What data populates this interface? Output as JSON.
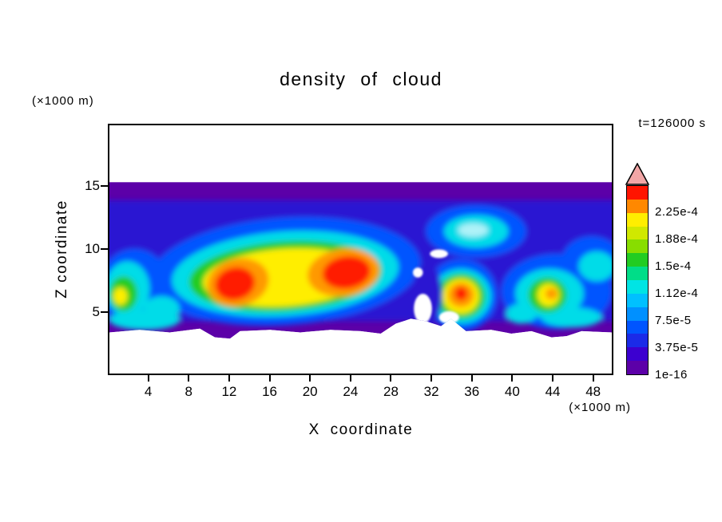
{
  "title": "density of cloud",
  "time_label": "t=126000 s",
  "axes": {
    "x_label": "X coordinate",
    "x_unit_label": "(×1000 m)",
    "z_label": "Z coordinate",
    "z_unit_label": "(×1000 m)",
    "x_ticks": [
      "4",
      "8",
      "12",
      "16",
      "20",
      "24",
      "28",
      "32",
      "36",
      "40",
      "44",
      "48"
    ],
    "z_ticks": [
      "5",
      "10",
      "15"
    ]
  },
  "colorbar": {
    "labels_top_to_bottom": [
      "2.25e-4",
      "1.88e-4",
      "1.5e-4",
      "1.12e-4",
      "7.5e-5",
      "3.75e-5",
      "1e-16"
    ],
    "segments_bottom_to_top": [
      "#5c00a8",
      "#3c00d0",
      "#1b2be8",
      "#0055ff",
      "#0090ff",
      "#00c0ff",
      "#00e4e4",
      "#00dd88",
      "#22cc22",
      "#88dd00",
      "#d0e800",
      "#ffee00",
      "#ff8800",
      "#ff1400"
    ],
    "overflow_arrow_color": "#f2a6a6"
  },
  "chart_data": {
    "type": "heatmap",
    "title": "density of cloud",
    "xlabel": "X coordinate (×1000 m)",
    "ylabel": "Z coordinate (×1000 m)",
    "time_label": "t=126000 s",
    "x_range": [
      0,
      50
    ],
    "z_range": [
      0,
      19.9
    ],
    "contour_levels": [
      1e-16,
      3.75e-05,
      7.5e-05,
      0.000112,
      0.00015,
      0.000188,
      0.000225
    ],
    "legend_position": "right",
    "grid": false,
    "band": {
      "z_top": 15.35,
      "bottom_profile": [
        [
          0,
          3.3
        ],
        [
          3,
          3.5
        ],
        [
          6,
          3.3
        ],
        [
          9,
          3.6
        ],
        [
          10.5,
          2.9
        ],
        [
          12,
          2.8
        ],
        [
          13,
          3.4
        ],
        [
          16,
          3.5
        ],
        [
          19,
          3.3
        ],
        [
          22,
          3.5
        ],
        [
          25,
          3.4
        ],
        [
          27,
          3.2
        ],
        [
          28.5,
          4.0
        ],
        [
          30,
          4.4
        ],
        [
          31.5,
          4.2
        ],
        [
          33,
          3.8
        ],
        [
          34,
          4.4
        ],
        [
          35.5,
          3.4
        ],
        [
          38,
          3.5
        ],
        [
          40,
          3.2
        ],
        [
          42,
          3.4
        ],
        [
          44,
          2.9
        ],
        [
          45.5,
          3.0
        ],
        [
          47,
          3.4
        ],
        [
          50,
          3.3
        ]
      ]
    },
    "palette": {
      "purple": "#5c00a8",
      "darkblue": "#2a18d2",
      "blue": "#0055ff",
      "skyblue": "#00a0ff",
      "cyan": "#00dce8",
      "green": "#22cc22",
      "yellow": "#ffee00",
      "orange": "#ff9900",
      "red": "#ff1e00",
      "lightcyan": "#aef2f8",
      "white": "#ffffff"
    },
    "features": [
      [
        "r",
        "darkblue",
        -2,
        52,
        4.2,
        13.9
      ],
      [
        "e",
        "blue",
        17.5,
        8.2,
        13.5,
        4.3,
        -4
      ],
      [
        "e",
        "blue",
        35,
        6.3,
        3.6,
        2.9,
        0
      ],
      [
        "e",
        "blue",
        36.5,
        11.4,
        5.0,
        2.1,
        0
      ],
      [
        "e",
        "blue",
        44.5,
        6.6,
        5.5,
        3.0,
        0
      ],
      [
        "e",
        "blue",
        2.5,
        7.0,
        3.5,
        3.0,
        0
      ],
      [
        "e",
        "blue",
        48,
        9.0,
        3.0,
        2.0,
        0
      ],
      [
        "e",
        "cyan",
        17.5,
        8.0,
        11.3,
        3.4,
        -4
      ],
      [
        "e",
        "cyan",
        35,
        6.2,
        3.0,
        2.2,
        0
      ],
      [
        "e",
        "cyan",
        36.5,
        11.4,
        3.2,
        1.3,
        0
      ],
      [
        "e",
        "cyan",
        43.8,
        6.4,
        3.4,
        2.0,
        0
      ],
      [
        "e",
        "cyan",
        1.8,
        6.8,
        2.2,
        2.2,
        0
      ],
      [
        "e",
        "cyan",
        5.2,
        5.2,
        1.8,
        1.0,
        0
      ],
      [
        "e",
        "cyan",
        3.5,
        4.3,
        3.5,
        0.8,
        0
      ],
      [
        "e",
        "cyan",
        48.5,
        8.6,
        1.8,
        1.2,
        0
      ],
      [
        "e",
        "cyan",
        41,
        4.8,
        1.5,
        0.8,
        0
      ],
      [
        "e",
        "cyan",
        46,
        4.5,
        3.0,
        0.8,
        0
      ],
      [
        "e",
        "green",
        17.5,
        7.8,
        9.6,
        2.8,
        -4
      ],
      [
        "e",
        "green",
        35,
        6.2,
        2.4,
        1.8,
        0
      ],
      [
        "e",
        "green",
        43.6,
        6.3,
        1.9,
        1.4,
        0
      ],
      [
        "e",
        "green",
        1.4,
        6.4,
        1.4,
        1.4,
        0
      ],
      [
        "e",
        "yellow",
        17.5,
        7.7,
        8.2,
        2.3,
        -4
      ],
      [
        "e",
        "yellow",
        35,
        6.2,
        1.8,
        1.4,
        0
      ],
      [
        "e",
        "yellow",
        43.7,
        6.3,
        1.1,
        0.9,
        0
      ],
      [
        "e",
        "yellow",
        1.1,
        6.2,
        0.7,
        0.7,
        0
      ],
      [
        "e",
        "orange",
        12.8,
        7.3,
        3.1,
        1.9,
        -14
      ],
      [
        "e",
        "orange",
        23.3,
        8.1,
        3.6,
        1.9,
        -8
      ],
      [
        "e",
        "orange",
        35,
        6.3,
        1.3,
        1.0,
        0
      ],
      [
        "e",
        "orange",
        44,
        6.4,
        0.6,
        0.45,
        0
      ],
      [
        "e",
        "red",
        12.5,
        7.2,
        2.0,
        1.3,
        -14
      ],
      [
        "e",
        "red",
        23.6,
        8.1,
        2.4,
        1.3,
        -8
      ],
      [
        "e",
        "red",
        35,
        6.4,
        0.65,
        0.55,
        0
      ],
      [
        "e",
        "lightcyan",
        36.2,
        11.5,
        1.5,
        0.55,
        0
      ],
      [
        "e",
        "darkblue",
        31.6,
        6.3,
        1.5,
        2.6,
        0
      ]
    ],
    "white_features": [
      [
        "e",
        "white",
        31.2,
        5.2,
        0.9,
        1.2,
        0
      ],
      [
        "e",
        "white",
        30.7,
        8.1,
        0.5,
        0.4,
        0
      ],
      [
        "e",
        "white",
        32.8,
        9.6,
        0.9,
        0.35,
        0
      ],
      [
        "e",
        "white",
        33.8,
        4.5,
        1.0,
        0.5,
        0
      ]
    ]
  }
}
